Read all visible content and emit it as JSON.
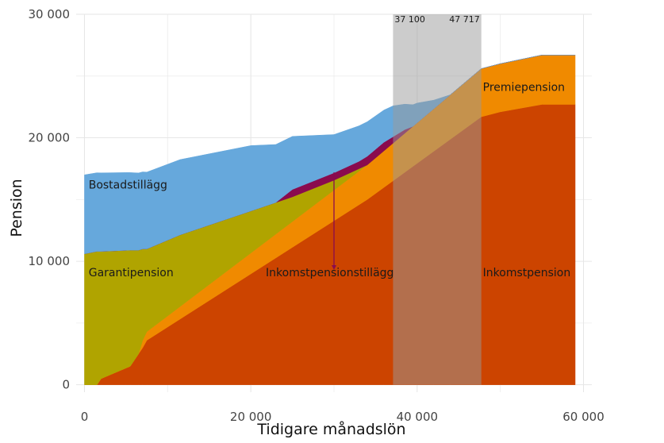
{
  "chart_data": {
    "type": "area",
    "xlabel": "Tidigare månadslön",
    "ylabel": "Pension",
    "xlim": [
      -1000,
      61000
    ],
    "ylim": [
      -600,
      30000
    ],
    "x_ticks": [
      0,
      20000,
      40000,
      60000
    ],
    "x_tick_labels": [
      "0",
      "20 000",
      "40 000",
      "60 000"
    ],
    "y_ticks": [
      0,
      10000,
      20000,
      30000
    ],
    "y_tick_labels": [
      "0",
      "10 000",
      "20 000",
      "30 000"
    ],
    "grid": true,
    "legend": "none",
    "stack_order": [
      "Inkomstpension",
      "Premiepension",
      "Garantipension",
      "Inkomstpensionstillägg",
      "Bostadstillägg"
    ],
    "series": [
      {
        "name": "Inkomstpension",
        "color": "#cc4400",
        "x": [
          1500,
          2000,
          5500,
          6500,
          7000,
          7500,
          34000,
          47717,
          50000,
          55000,
          59000
        ],
        "values": [
          0,
          500,
          1500,
          2500,
          3000,
          3600,
          15000,
          21700,
          22100,
          22700,
          22700
        ]
      },
      {
        "name": "Premiepension",
        "color": "#f08a00",
        "x": [
          1500,
          2000,
          5500,
          6500,
          7000,
          7500,
          34000,
          47717,
          50000,
          55000,
          59000
        ],
        "values": [
          0,
          0,
          0,
          0,
          600,
          700,
          2800,
          3900,
          3900,
          4000,
          4000
        ]
      },
      {
        "name": "Garantipension",
        "color": "#b0a400",
        "x": [
          0,
          1500,
          2000,
          5500,
          6500,
          7000,
          7500,
          11500,
          20000,
          25000,
          30000,
          34000,
          38500
        ],
        "values": [
          10600,
          10800,
          10300,
          9400,
          8400,
          7400,
          6700,
          5800,
          3400,
          2000,
          800,
          0,
          0
        ]
      },
      {
        "name": "Inkomstpensionstillägg",
        "color": "#8a0b4e",
        "x": [
          0,
          20000,
          23000,
          25000,
          30000,
          33000,
          34000,
          36000,
          38500,
          39500
        ],
        "values": [
          0,
          0,
          0,
          600,
          600,
          600,
          700,
          700,
          300,
          0
        ]
      },
      {
        "name": "Bostadstillägg",
        "color": "#66a8dc",
        "x": [
          0,
          5000,
          11500,
          20000,
          25000,
          30000,
          34000,
          37100,
          40000,
          42000,
          44000
        ],
        "values": [
          6400,
          6300,
          6100,
          5300,
          4300,
          3100,
          2800,
          2500,
          1600,
          700,
          0
        ]
      }
    ],
    "annotations": {
      "band": {
        "x_start": 37100,
        "x_end": 47717,
        "color": "#999999",
        "opacity": 0.5,
        "start_label": "37 100",
        "end_label": "47 717"
      },
      "labels": [
        {
          "text": "Bostadstillägg",
          "x": 500,
          "y": 15900
        },
        {
          "text": "Garantipension",
          "x": 500,
          "y": 8800
        },
        {
          "text": "Inkomstpensionstillägg",
          "x": 21800,
          "y": 8800
        },
        {
          "text": "Inkomstpension",
          "x": 47900,
          "y": 8800
        },
        {
          "text": "Premiepension",
          "x": 47900,
          "y": 23800
        }
      ],
      "arrow": {
        "x": 30000,
        "y_start": 17200,
        "y_end": 9300,
        "color": "#8a0b4e"
      }
    }
  }
}
